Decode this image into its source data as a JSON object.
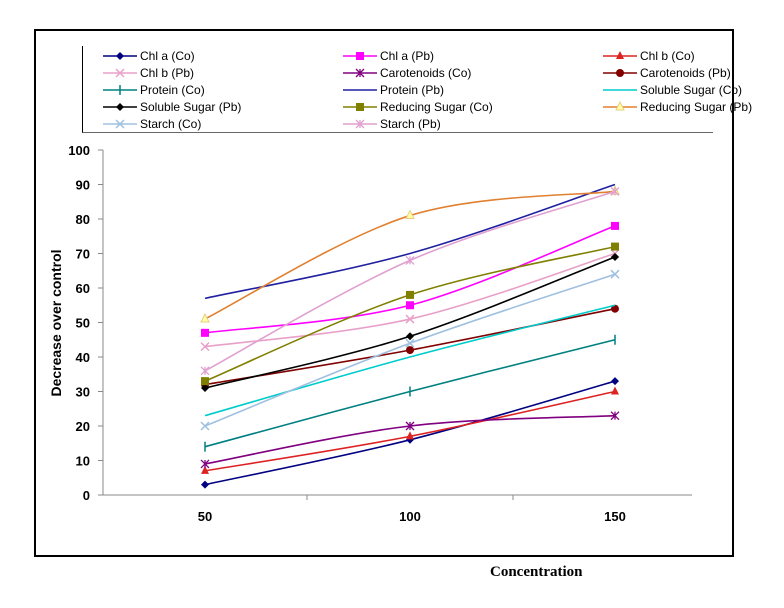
{
  "chart_data": {
    "type": "line",
    "title": "",
    "xlabel": "Concentration",
    "ylabel": "Decrease over control",
    "x": [
      50,
      100,
      150
    ],
    "xticks": [
      "50",
      "100",
      "150"
    ],
    "ylim": [
      0,
      100
    ],
    "yticks": [
      0,
      10,
      20,
      30,
      40,
      50,
      60,
      70,
      80,
      90,
      100
    ],
    "grid": false,
    "legend_position": "top",
    "series": [
      {
        "name": "Chl a (Co)",
        "values": [
          3,
          16,
          33
        ],
        "color": "#000080",
        "marker": "diamond"
      },
      {
        "name": "Chl a (Pb)",
        "values": [
          47,
          55,
          78
        ],
        "color": "#ff00ff",
        "marker": "square"
      },
      {
        "name": "Chl b (Co)",
        "values": [
          7,
          17,
          30
        ],
        "color": "#dd2222",
        "marker": "triangle"
      },
      {
        "name": "Chl b (Pb)",
        "values": [
          43,
          51,
          70
        ],
        "color": "#e8a0c8",
        "marker": "x"
      },
      {
        "name": "Carotenoids (Co)",
        "values": [
          9,
          20,
          23
        ],
        "color": "#800080",
        "marker": "star"
      },
      {
        "name": "Carotenoids (Pb)",
        "values": [
          32,
          42,
          54
        ],
        "color": "#800000",
        "marker": "circle"
      },
      {
        "name": "Protein (Co)",
        "values": [
          14,
          30,
          45
        ],
        "color": "#008080",
        "marker": "plus"
      },
      {
        "name": "Protein (Pb)",
        "values": [
          57,
          70,
          90
        ],
        "color": "#2020a0",
        "marker": "none"
      },
      {
        "name": "Soluble Sugar (Co)",
        "values": [
          23,
          40,
          55
        ],
        "color": "#00cccc",
        "marker": "none"
      },
      {
        "name": "Soluble Sugar (Pb)",
        "values": [
          31,
          46,
          69
        ],
        "color": "#000000",
        "marker": "diamond"
      },
      {
        "name": "Reducing Sugar (Co)",
        "values": [
          33,
          58,
          72
        ],
        "color": "#808000",
        "marker": "square"
      },
      {
        "name": "Reducing Sugar (Pb)",
        "values": [
          51,
          81,
          88
        ],
        "color": "#e08030",
        "marker": "triangle-open"
      },
      {
        "name": "Starch (Co)",
        "values": [
          20,
          44,
          64
        ],
        "color": "#a0c0e0",
        "marker": "x"
      },
      {
        "name": "Starch (Pb)",
        "values": [
          36,
          68,
          88
        ],
        "color": "#e0a0d0",
        "marker": "star"
      }
    ]
  }
}
